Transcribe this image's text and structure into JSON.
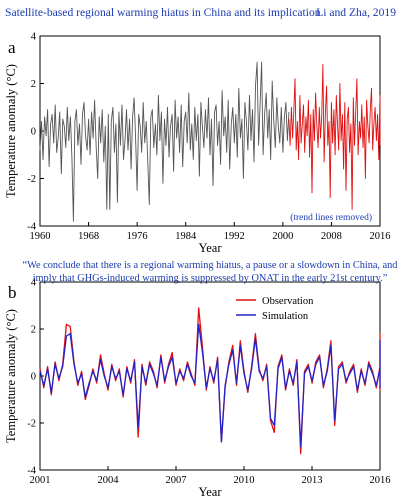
{
  "header": {
    "title": "Satellite-based regional warming hiatus in China and its implication",
    "authors": "Li and Zha, 2019"
  },
  "quote": {
    "line1": "“We conclude that there is a regional warming hiatus, a pause or a slowdown in China, and",
    "line2": "imply that GHGs-induced warming is suppressed by ONAT in the early 21st century.”"
  },
  "colors": {
    "accent_text": "#1a3bb0",
    "series_pre": "#555555",
    "series_post": "#e01010",
    "observation": "#e01010",
    "simulation": "#2323c8"
  },
  "chart_data": [
    {
      "panel": "a",
      "type": "line",
      "xlabel": "Year",
      "ylabel": "Temperature anomaly (°C)",
      "xlim": [
        1960,
        2016
      ],
      "ylim": [
        -4,
        4
      ],
      "xticks": [
        "1960",
        "1968",
        "1976",
        "1984",
        "1992",
        "2000",
        "2008",
        "2016"
      ],
      "yticks": [
        "-4",
        "-2",
        "0",
        "2",
        "4"
      ],
      "annotation": "(trend lines removed)",
      "series": [
        {
          "x_start": 1960,
          "step": 0.25,
          "values": [
            -0.8,
            0.4,
            -1.2,
            0.6,
            -0.2,
            0.9,
            -1.5,
            0.3,
            0.7,
            -0.5,
            1.1,
            -0.9,
            -0.3,
            0.8,
            -1.8,
            0.5,
            0.2,
            -0.7,
            1.0,
            -0.4,
            0.6,
            -1.1,
            -3.8,
            0.4,
            0.9,
            -0.6,
            0.3,
            -1.4,
            0.7,
            1.2,
            -0.2,
            -0.8,
            0.5,
            -1.0,
            0.8,
            -0.3,
            1.3,
            -0.7,
            -2.0,
            0.6,
            -0.5,
            0.9,
            -1.3,
            0.2,
            -3.3,
            0.7,
            -3.3,
            0.4,
            1.0,
            -0.9,
            0.3,
            -3.0,
            0.8,
            -0.6,
            1.1,
            -1.2,
            -0.4,
            0.9,
            -0.8,
            0.5,
            -1.6,
            0.6,
            1.4,
            -0.3,
            -2.5,
            0.7,
            0.2,
            -0.9,
            1.2,
            -0.5,
            0.4,
            -1.3,
            -3.1,
            0.6,
            0.9,
            -0.7,
            0.3,
            -1.0,
            1.5,
            -0.4,
            0.8,
            -2.2,
            0.5,
            -0.6,
            1.0,
            -1.1,
            0.2,
            0.7,
            -1.7,
            1.3,
            -0.3,
            0.6,
            -0.9,
            1.1,
            -1.5,
            0.4,
            0.8,
            -0.5,
            1.6,
            -0.8,
            0.3,
            -1.2,
            1.0,
            -0.4,
            0.7,
            -1.9,
            1.2,
            0.2,
            -0.7,
            0.9,
            -0.3,
            1.4,
            -1.0,
            0.5,
            -2.3,
            0.8,
            1.1,
            -0.6,
            0.4,
            -1.4,
            1.7,
            -0.2,
            0.6,
            -0.9,
            1.3,
            -1.6,
            0.3,
            1.0,
            -0.5,
            0.7,
            -1.1,
            1.8,
            -0.3,
            0.5,
            -2.0,
            1.2,
            0.4,
            -0.8,
            1.5,
            -0.4,
            0.9,
            -1.3,
            1.9,
            2.9,
            -0.6,
            1.1,
            2.9,
            -1.0,
            0.7,
            1.6,
            -0.3,
            0.9,
            -1.2,
            2.1,
            0.4,
            -0.7,
            1.4,
            0.2,
            -0.5,
            1.0,
            -0.9,
            0.6,
            1.2,
            -0.4,
            0.8
          ]
        },
        {
          "x_start": 2001,
          "step": 0.2,
          "values": [
            0.5,
            -0.6,
            1.0,
            -0.3,
            0.8,
            2.2,
            -0.8,
            0.4,
            -1.2,
            1.5,
            -0.5,
            0.3,
            1.1,
            -0.9,
            0.6,
            -0.2,
            1.3,
            -1.1,
            0.7,
            -2.6,
            0.9,
            -0.4,
            1.6,
            0.2,
            -0.7,
            1.0,
            -0.3,
            0.6,
            2.8,
            -1.3,
            0.8,
            1.9,
            -0.6,
            0.4,
            -2.8,
            1.2,
            -0.5,
            0.9,
            -1.0,
            1.5,
            0.3,
            -0.8,
            2.0,
            -0.4,
            0.7,
            -1.6,
            1.2,
            -2.5,
            0.5,
            1.0,
            -0.9,
            0.3,
            -3.3,
            1.4,
            -0.6,
            0.8,
            2.2,
            -1.0,
            0.4,
            -0.3,
            1.1,
            -0.7,
            0.6,
            -2.0,
            1.3,
            0.2,
            -0.5,
            0.9,
            1.8,
            -0.8,
            0.3,
            1.0,
            -0.4,
            0.7,
            -1.2,
            1.5,
            0.1,
            -0.6,
            0.9
          ]
        }
      ]
    },
    {
      "panel": "b",
      "type": "line",
      "xlabel": "Year",
      "ylabel": "Temperature anomaly (°C)",
      "xlim": [
        2001,
        2016
      ],
      "ylim": [
        -4,
        4
      ],
      "xticks": [
        "2001",
        "2004",
        "2007",
        "2010",
        "2013",
        "2016"
      ],
      "yticks": [
        "-4",
        "-2",
        "0",
        "2",
        "4"
      ],
      "legend_position": "top-right",
      "series": [
        {
          "name": "Observation",
          "x_start": 2001,
          "step": 0.1667,
          "values": [
            0.3,
            -0.5,
            0.4,
            -0.8,
            0.6,
            -0.2,
            0.5,
            2.2,
            2.1,
            0.6,
            -0.4,
            0.2,
            -1.0,
            -0.4,
            0.3,
            -0.3,
            0.9,
            0.1,
            -0.6,
            0.5,
            -0.2,
            0.3,
            -0.9,
            0.4,
            -0.3,
            0.7,
            -2.6,
            0.5,
            -0.4,
            0.6,
            0.2,
            -0.5,
            0.9,
            -0.3,
            0.5,
            1.0,
            -0.4,
            0.3,
            -0.2,
            0.6,
            0.1,
            -0.4,
            2.9,
            1.2,
            -0.6,
            0.4,
            -0.3,
            0.8,
            -2.8,
            -0.5,
            0.6,
            1.3,
            -0.4,
            1.5,
            0.2,
            -0.7,
            0.4,
            1.8,
            0.3,
            -0.2,
            0.5,
            -1.9,
            -2.4,
            0.4,
            0.9,
            -0.6,
            0.3,
            -0.4,
            0.7,
            -3.3,
            0.2,
            0.5,
            -0.3,
            0.6,
            0.9,
            -0.5,
            0.3,
            1.5,
            -2.1,
            0.4,
            0.6,
            -0.3,
            0.2,
            0.5,
            -0.7,
            0.3,
            -0.4,
            0.6,
            0.2,
            -0.5,
            0.4,
            0.9,
            -0.3,
            0.3,
            1.3,
            -0.6,
            0.5,
            0.1,
            -0.4,
            0.3,
            0.8,
            1.8,
            0.4,
            -0.5,
            0.3,
            -0.2,
            0.5,
            -0.4,
            0.6,
            0.2,
            -0.3,
            0.4,
            0.1,
            -0.5,
            0.3,
            1.0,
            0.5,
            -0.2,
            0.4,
            0.2,
            0.3
          ]
        },
        {
          "name": "Simulation",
          "x_start": 2001,
          "step": 0.1667,
          "values": [
            0.2,
            -0.4,
            0.3,
            -0.7,
            0.5,
            -0.1,
            0.4,
            1.7,
            1.8,
            0.5,
            -0.3,
            0.1,
            -0.9,
            -0.3,
            0.2,
            -0.2,
            0.7,
            0.0,
            -0.5,
            0.4,
            -0.1,
            0.2,
            -0.8,
            0.3,
            -0.2,
            0.6,
            -2.2,
            0.4,
            -0.3,
            0.5,
            0.1,
            -0.4,
            0.8,
            -0.2,
            0.4,
            0.8,
            -0.3,
            0.2,
            -0.1,
            0.5,
            0.0,
            -0.3,
            2.2,
            1.0,
            -0.5,
            0.3,
            -0.2,
            0.7,
            -2.8,
            -0.4,
            0.5,
            1.1,
            -0.3,
            1.3,
            0.1,
            -0.6,
            0.3,
            1.6,
            0.2,
            -0.1,
            0.4,
            -1.8,
            -2.1,
            0.3,
            0.8,
            -0.5,
            0.2,
            -0.3,
            0.6,
            -3.0,
            0.1,
            0.4,
            -0.2,
            0.5,
            0.8,
            -0.4,
            0.2,
            1.3,
            -1.9,
            0.3,
            0.5,
            -0.2,
            0.1,
            0.4,
            -0.6,
            0.2,
            -0.3,
            0.5,
            0.1,
            -0.4,
            0.3,
            0.8,
            -0.2,
            0.2,
            1.1,
            -0.5,
            0.4,
            0.0,
            -0.3,
            0.2,
            0.7,
            1.5,
            0.3,
            -0.4,
            0.2,
            -0.1,
            0.4,
            -0.3,
            0.5,
            0.1,
            -0.2,
            0.3,
            0.0,
            -0.4,
            0.2,
            0.9,
            0.4,
            -0.1,
            0.3,
            0.1,
            0.2
          ]
        }
      ]
    }
  ]
}
